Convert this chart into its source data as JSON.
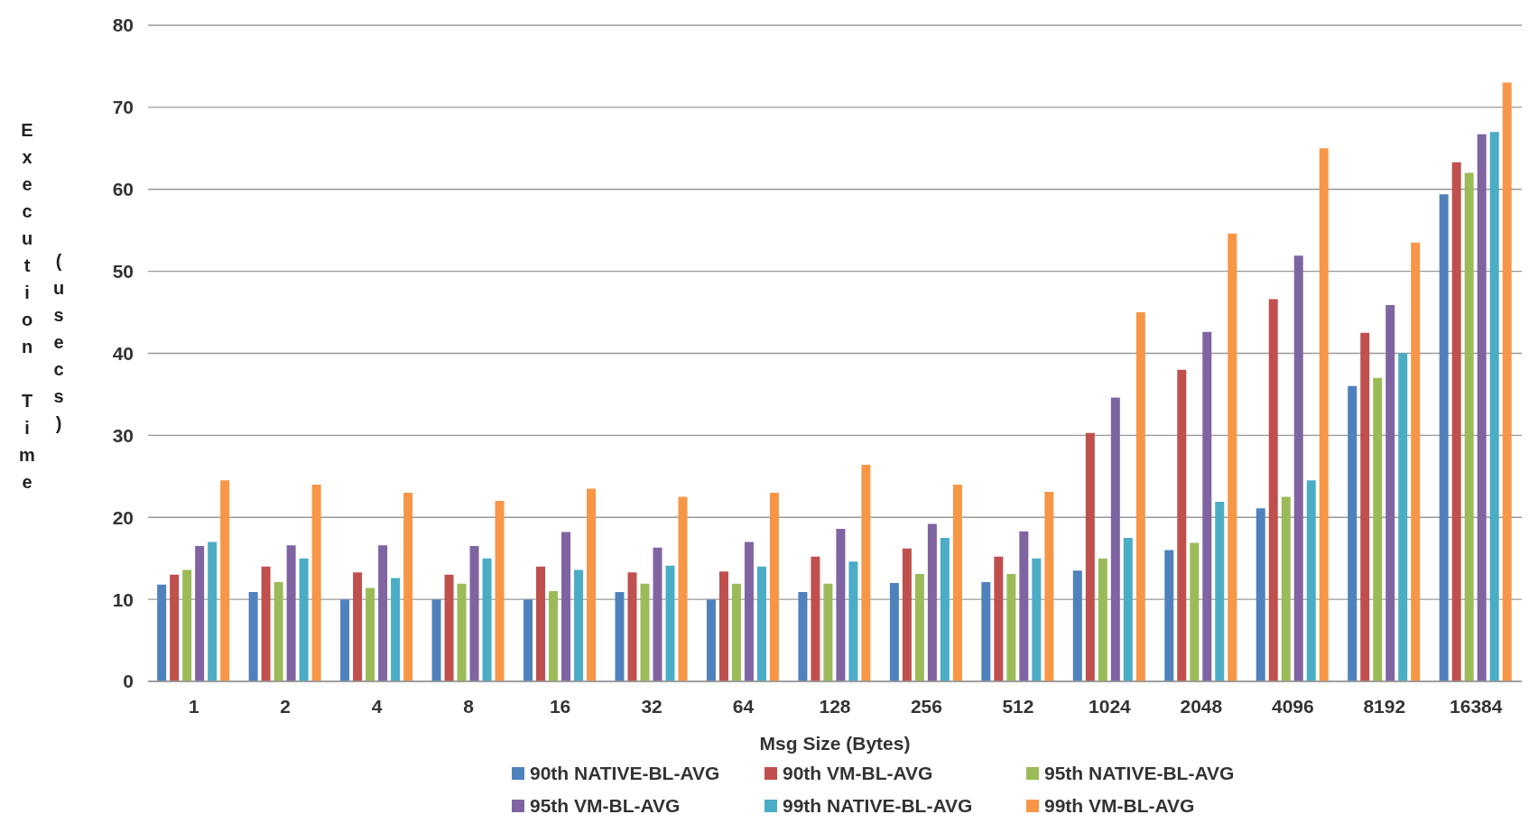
{
  "chart_data": {
    "type": "bar",
    "xlabel": "Msg Size (Bytes)",
    "ylabel": "Execution Time (usecs)",
    "categories": [
      "1",
      "2",
      "4",
      "8",
      "16",
      "32",
      "64",
      "128",
      "256",
      "512",
      "1024",
      "2048",
      "4096",
      "8192",
      "16384"
    ],
    "series": [
      {
        "name": "90th NATIVE-BL-AVG",
        "color": "#4f81bd",
        "values": [
          11.8,
          10.9,
          10,
          10,
          10,
          10.9,
          10,
          10.9,
          12,
          12.1,
          13.5,
          16,
          21.1,
          36,
          59.4
        ]
      },
      {
        "name": "90th VM-BL-AVG",
        "color": "#c0504d",
        "values": [
          13,
          14,
          13.3,
          13,
          14,
          13.3,
          13.4,
          15.2,
          16.2,
          15.2,
          30.3,
          38,
          46.6,
          42.5,
          63.3
        ]
      },
      {
        "name": "95th NATIVE-BL-AVG",
        "color": "#9bbb59",
        "values": [
          13.6,
          12.1,
          11.4,
          11.9,
          11,
          11.9,
          11.9,
          11.9,
          13.1,
          13.1,
          15,
          16.9,
          22.5,
          37,
          62
        ]
      },
      {
        "name": "95th VM-BL-AVG",
        "color": "#8064a2",
        "values": [
          16.5,
          16.6,
          16.6,
          16.5,
          18.2,
          16.3,
          17,
          18.6,
          19.2,
          18.3,
          34.6,
          42.6,
          51.9,
          45.9,
          66.7
        ]
      },
      {
        "name": "99th NATIVE-BL-AVG",
        "color": "#4bacc6",
        "values": [
          17,
          15,
          12.6,
          15,
          13.6,
          14.1,
          14,
          14.6,
          17.5,
          15,
          17.5,
          21.9,
          24.5,
          40,
          67
        ]
      },
      {
        "name": "99th VM-BL-AVG",
        "color": "#f79646",
        "values": [
          24.5,
          24,
          23,
          22,
          23.5,
          22.5,
          23,
          26.4,
          24,
          23.1,
          45,
          54.6,
          65,
          53.5,
          73
        ]
      }
    ],
    "ylim": [
      0,
      80
    ],
    "yticks": [
      0,
      10,
      20,
      30,
      40,
      50,
      60,
      70,
      80
    ],
    "grid": "y",
    "legend": "bottom"
  }
}
